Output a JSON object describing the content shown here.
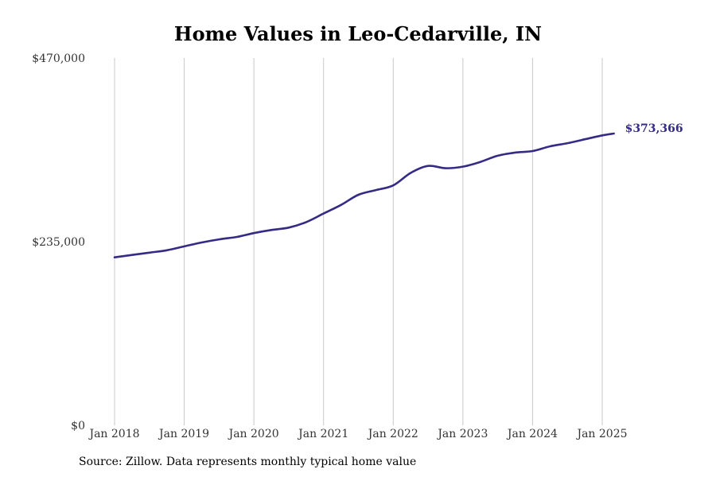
{
  "colors": {
    "line": "#342b85",
    "grid": "#c8c8c8",
    "text": "#333333"
  },
  "source_note": "Source: Zillow. Data represents monthly typical home value",
  "chart_data": {
    "type": "line",
    "title": "Home Values in Leo-Cedarville, IN",
    "xlabel": "",
    "ylabel": "",
    "ylim": [
      0,
      470000
    ],
    "yticks": [
      0,
      235000,
      470000
    ],
    "ytick_labels": [
      "$0",
      "$235,000",
      "$470,000"
    ],
    "xticks": [
      "2018-01",
      "2019-01",
      "2020-01",
      "2021-01",
      "2022-01",
      "2023-01",
      "2024-01",
      "2025-01"
    ],
    "xtick_labels": [
      "Jan 2018",
      "Jan 2019",
      "Jan 2020",
      "Jan 2021",
      "Jan 2022",
      "Jan 2023",
      "Jan 2024",
      "Jan 2025"
    ],
    "grid": "vertical",
    "end_label": "$373,366",
    "series": [
      {
        "values": [
          [
            "2018-01",
            215000
          ],
          [
            "2018-04",
            218000
          ],
          [
            "2018-07",
            221000
          ],
          [
            "2018-10",
            224000
          ],
          [
            "2019-01",
            229000
          ],
          [
            "2019-04",
            234000
          ],
          [
            "2019-07",
            238000
          ],
          [
            "2019-10",
            241000
          ],
          [
            "2020-01",
            246000
          ],
          [
            "2020-04",
            250000
          ],
          [
            "2020-07",
            253000
          ],
          [
            "2020-10",
            260000
          ],
          [
            "2021-01",
            271000
          ],
          [
            "2021-04",
            282000
          ],
          [
            "2021-07",
            295000
          ],
          [
            "2021-10",
            301000
          ],
          [
            "2022-01",
            307000
          ],
          [
            "2022-04",
            323000
          ],
          [
            "2022-07",
            332000
          ],
          [
            "2022-10",
            329000
          ],
          [
            "2023-01",
            331000
          ],
          [
            "2023-04",
            337000
          ],
          [
            "2023-07",
            345000
          ],
          [
            "2023-10",
            349000
          ],
          [
            "2024-01",
            351000
          ],
          [
            "2024-04",
            357000
          ],
          [
            "2024-07",
            361000
          ],
          [
            "2024-10",
            366000
          ],
          [
            "2025-01",
            371000
          ],
          [
            "2025-03",
            373366
          ]
        ]
      }
    ]
  }
}
